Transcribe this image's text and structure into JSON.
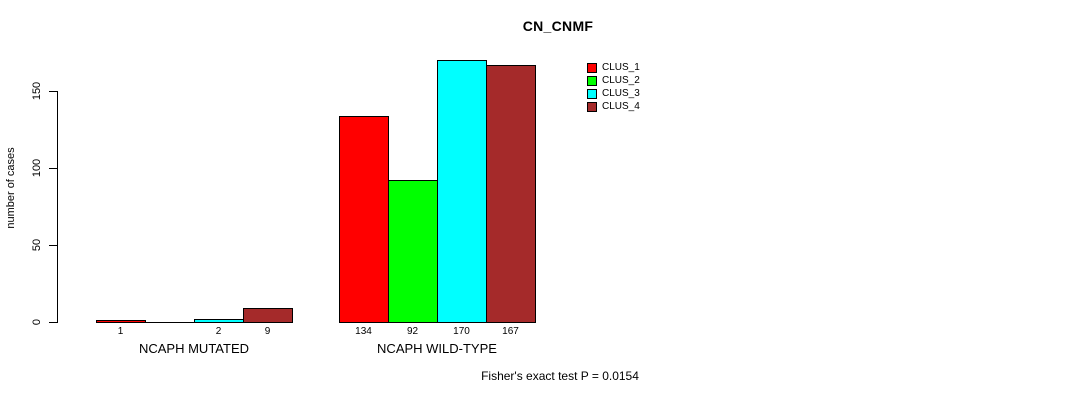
{
  "chart_data": {
    "type": "bar",
    "title": "CN_CNMF",
    "xlabel": "",
    "ylabel": "number of cases",
    "ylim": [
      0,
      170
    ],
    "yticks": [
      0,
      50,
      100,
      150
    ],
    "grid": false,
    "legend_position": "top-right",
    "series_labels": [
      "CLUS_1",
      "CLUS_2",
      "CLUS_3",
      "CLUS_4"
    ],
    "colors": [
      "#ff0000",
      "#00ff00",
      "#00ffff",
      "#a52a2a"
    ],
    "groups": [
      {
        "label": "NCAPH MUTATED",
        "values": [
          1,
          0,
          2,
          9
        ]
      },
      {
        "label": "NCAPH WILD-TYPE",
        "values": [
          134,
          92,
          170,
          167
        ]
      }
    ],
    "annotation": "Fisher's exact test P = 0.0154"
  }
}
